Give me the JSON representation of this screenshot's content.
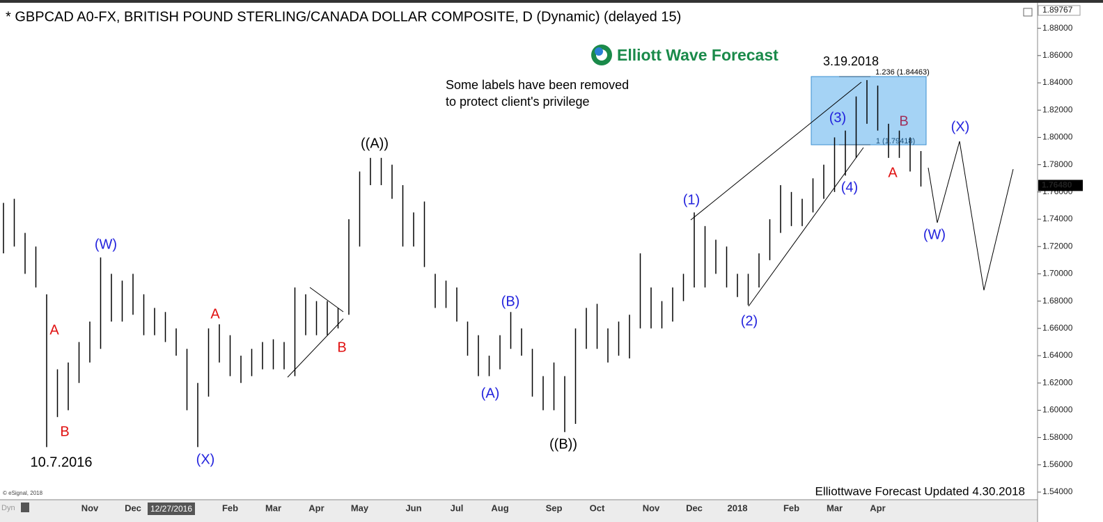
{
  "chart_data": {
    "type": "ohlc",
    "title": "* GBPCAD A0-FX, BRITISH POUND STERLING/CANADA DOLLAR COMPOSITE, D (Dynamic) (delayed 15)",
    "logo": "Elliott Wave Forecast",
    "note": [
      "Some labels have been removed",
      "to protect client's privilege"
    ],
    "footer": "Elliottwave Forecast Updated 4.30.2018",
    "copyright": "© eSignal, 2018",
    "mode": "Dyn",
    "cursor_label": "12/27/2016",
    "color": "#000000",
    "categories": [
      null,
      null,
      null,
      null,
      null,
      null,
      null,
      null,
      "Nov",
      null,
      null,
      null,
      "Dec",
      null,
      null,
      null,
      null,
      null,
      null,
      null,
      null,
      "Feb",
      null,
      null,
      null,
      "Mar",
      null,
      null,
      null,
      "Apr",
      null,
      null,
      null,
      "May",
      null,
      null,
      null,
      null,
      "Jun",
      null,
      null,
      null,
      "Jul",
      null,
      null,
      null,
      "Aug",
      null,
      null,
      null,
      null,
      "Sep",
      null,
      null,
      null,
      "Oct",
      null,
      null,
      null,
      null,
      "Nov",
      null,
      null,
      null,
      "Dec",
      null,
      null,
      null,
      "2018",
      null,
      null,
      null,
      null,
      "Feb",
      null,
      null,
      null,
      "Mar",
      null,
      null,
      null,
      "Apr",
      null,
      null,
      null,
      null
    ],
    "high": [
      1.752,
      1.755,
      1.73,
      1.72,
      1.685,
      1.63,
      1.635,
      1.65,
      1.665,
      1.712,
      1.7,
      1.695,
      1.7,
      1.685,
      1.675,
      1.672,
      1.66,
      1.645,
      1.62,
      1.66,
      1.663,
      1.655,
      1.64,
      1.645,
      1.65,
      1.652,
      1.65,
      1.69,
      1.685,
      1.68,
      1.68,
      1.675,
      1.74,
      1.775,
      1.785,
      1.785,
      1.78,
      1.765,
      1.745,
      1.753,
      1.7,
      1.695,
      1.69,
      1.665,
      1.655,
      1.64,
      1.655,
      1.672,
      1.66,
      1.645,
      1.625,
      1.635,
      1.625,
      1.66,
      1.675,
      1.678,
      1.66,
      1.665,
      1.67,
      1.715,
      1.69,
      1.68,
      1.69,
      1.7,
      1.745,
      1.735,
      1.725,
      1.72,
      1.7,
      1.7,
      1.715,
      1.74,
      1.765,
      1.76,
      1.755,
      1.77,
      1.78,
      1.8,
      1.805,
      1.83,
      1.842,
      1.838,
      1.81,
      1.805,
      1.8,
      1.79
    ],
    "low": [
      1.715,
      1.72,
      1.7,
      1.69,
      1.573,
      1.595,
      1.6,
      1.62,
      1.635,
      1.645,
      1.665,
      1.665,
      1.67,
      1.655,
      1.655,
      1.65,
      1.64,
      1.6,
      1.573,
      1.61,
      1.635,
      1.625,
      1.62,
      1.625,
      1.63,
      1.63,
      1.63,
      1.625,
      1.655,
      1.655,
      1.655,
      1.66,
      1.67,
      1.72,
      1.765,
      1.765,
      1.755,
      1.72,
      1.72,
      1.705,
      1.675,
      1.675,
      1.665,
      1.64,
      1.625,
      1.625,
      1.63,
      1.645,
      1.64,
      1.61,
      1.6,
      1.6,
      1.584,
      1.59,
      1.645,
      1.645,
      1.635,
      1.64,
      1.638,
      1.66,
      1.66,
      1.66,
      1.665,
      1.68,
      1.69,
      1.69,
      1.7,
      1.69,
      1.683,
      1.677,
      1.69,
      1.71,
      1.73,
      1.735,
      1.735,
      1.745,
      1.755,
      1.76,
      1.772,
      1.785,
      1.81,
      1.805,
      1.785,
      1.785,
      1.775,
      1.764
    ],
    "ylim": [
      1.5344,
      1.89767
    ],
    "top_label": {
      "value": 1.89767,
      "label": "1.89767"
    },
    "last_price": {
      "value": 1.7648,
      "label": "1.76480"
    },
    "yticks": [
      {
        "value": 1.54,
        "label": "1.54000"
      },
      {
        "value": 1.56,
        "label": "1.56000"
      },
      {
        "value": 1.58,
        "label": "1.58000"
      },
      {
        "value": 1.6,
        "label": "1.60000"
      },
      {
        "value": 1.62,
        "label": "1.62000"
      },
      {
        "value": 1.64,
        "label": "1.64000"
      },
      {
        "value": 1.66,
        "label": "1.66000"
      },
      {
        "value": 1.68,
        "label": "1.68000"
      },
      {
        "value": 1.7,
        "label": "1.70000"
      },
      {
        "value": 1.72,
        "label": "1.72000"
      },
      {
        "value": 1.74,
        "label": "1.74000"
      },
      {
        "value": 1.76,
        "label": "1.76000"
      },
      {
        "value": 1.78,
        "label": "1.78000"
      },
      {
        "value": 1.8,
        "label": "1.80000"
      },
      {
        "value": 1.82,
        "label": "1.82000"
      },
      {
        "value": 1.84,
        "label": "1.84000"
      },
      {
        "value": 1.86,
        "label": "1.86000"
      },
      {
        "value": 1.88,
        "label": "1.88000"
      }
    ],
    "annotations": [
      {
        "text": "A",
        "color": "#e01010"
      },
      {
        "text": "B",
        "color": "#e01010"
      },
      {
        "text": "10.7.2016",
        "color": "#000000"
      },
      {
        "text": "(W)",
        "color": "#2222dd"
      },
      {
        "text": "(X)",
        "color": "#2222dd"
      },
      {
        "text": "A",
        "color": "#e01010"
      },
      {
        "text": "B",
        "color": "#e01010"
      },
      {
        "text": "((A))",
        "color": "#000000"
      },
      {
        "text": "(B)",
        "color": "#2222dd"
      },
      {
        "text": "(A)",
        "color": "#2222dd"
      },
      {
        "text": "((B))",
        "color": "#000000"
      },
      {
        "text": "(1)",
        "color": "#2222dd"
      },
      {
        "text": "(2)",
        "color": "#2222dd"
      },
      {
        "text": "(3)",
        "color": "#2222dd"
      },
      {
        "text": "(4)",
        "color": "#2222dd"
      },
      {
        "text": "A",
        "color": "#e01010"
      },
      {
        "text": "B",
        "color": "#a0305a"
      },
      {
        "text": "(X)",
        "color": "#2222dd"
      },
      {
        "text": "(W)",
        "color": "#2222dd"
      },
      {
        "text": "3.19.2018",
        "color": "#000000"
      },
      {
        "text": "1.236 (1.84463)",
        "color": "#000000"
      },
      {
        "text": "1 (1.79418)",
        "color": "#1a4f7a"
      }
    ]
  }
}
